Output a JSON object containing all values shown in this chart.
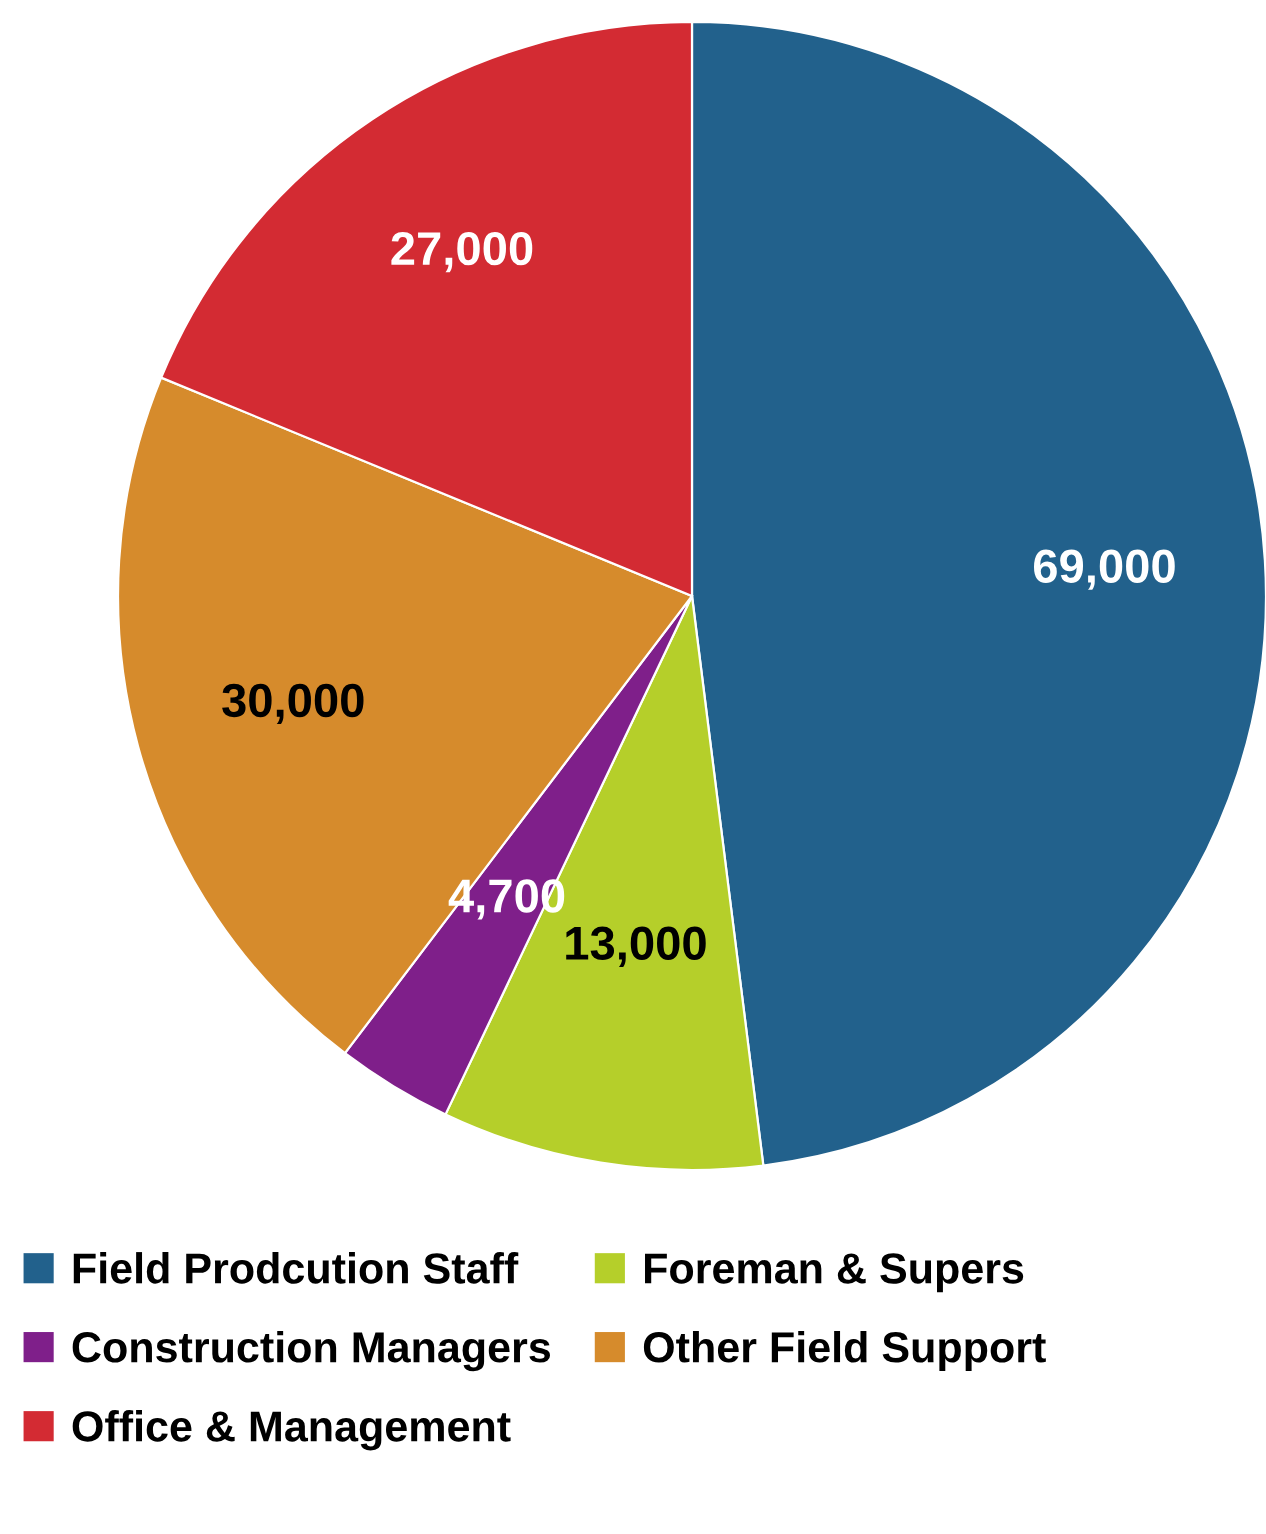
{
  "chart_data": {
    "type": "pie",
    "categories": [
      "Field Prodcution Staff",
      "Foreman & Supers",
      "Construction Managers",
      "Other Field Support",
      "Office & Management"
    ],
    "values": [
      69000,
      13000,
      4700,
      30000,
      27000
    ],
    "value_labels": [
      "69,000",
      "13,000",
      "4,700",
      "30,000",
      "27,000"
    ],
    "colors": [
      "#22618c",
      "#b5cf2a",
      "#7f1f8a",
      "#d68b2c",
      "#d32b33"
    ],
    "legend": "bottom"
  }
}
